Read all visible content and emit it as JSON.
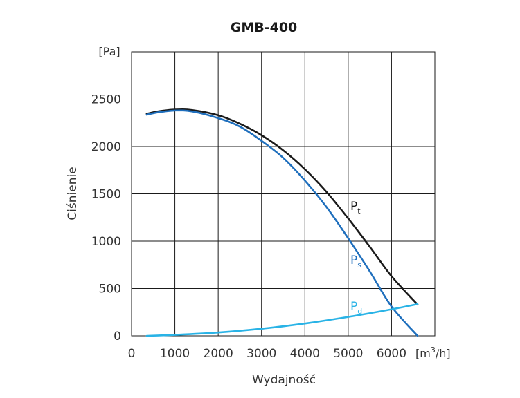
{
  "chart_data": {
    "type": "line",
    "title": "GMB-400",
    "xlabel": "Wydajność",
    "ylabel": "Ciśnienie",
    "x_unit": {
      "prefix": "[m",
      "sup": "3",
      "suffix": "/h]"
    },
    "y_unit": "[Pa]",
    "xlim": [
      0,
      7000
    ],
    "ylim": [
      0,
      3000
    ],
    "x_ticks": [
      0,
      1000,
      2000,
      3000,
      4000,
      5000,
      6000
    ],
    "y_ticks": [
      0,
      500,
      1000,
      1500,
      2000,
      2500
    ],
    "grid": true,
    "series": [
      {
        "name": "Pt",
        "label_main": "P",
        "label_sub": "t",
        "color": "#1a1a1a",
        "x": [
          350,
          600,
          1000,
          1400,
          2000,
          2500,
          3000,
          3500,
          4000,
          4500,
          5000,
          5500,
          6000,
          6600
        ],
        "y": [
          2345,
          2370,
          2390,
          2385,
          2330,
          2240,
          2120,
          1960,
          1760,
          1520,
          1240,
          940,
          630,
          330
        ]
      },
      {
        "name": "Ps",
        "label_main": "P",
        "label_sub": "s",
        "color": "#1f6fbd",
        "x": [
          350,
          600,
          1000,
          1400,
          2000,
          2500,
          3000,
          3500,
          4000,
          4500,
          5000,
          5500,
          6000,
          6600
        ],
        "y": [
          2335,
          2360,
          2380,
          2370,
          2300,
          2210,
          2060,
          1880,
          1640,
          1360,
          1030,
          680,
          310,
          0
        ]
      },
      {
        "name": "Pd",
        "label_main": "P",
        "label_sub": "d",
        "color": "#29b3e6",
        "x": [
          350,
          1000,
          2000,
          3000,
          4000,
          5000,
          6000,
          6600
        ],
        "y": [
          0,
          10,
          35,
          75,
          130,
          200,
          280,
          335
        ]
      }
    ]
  }
}
